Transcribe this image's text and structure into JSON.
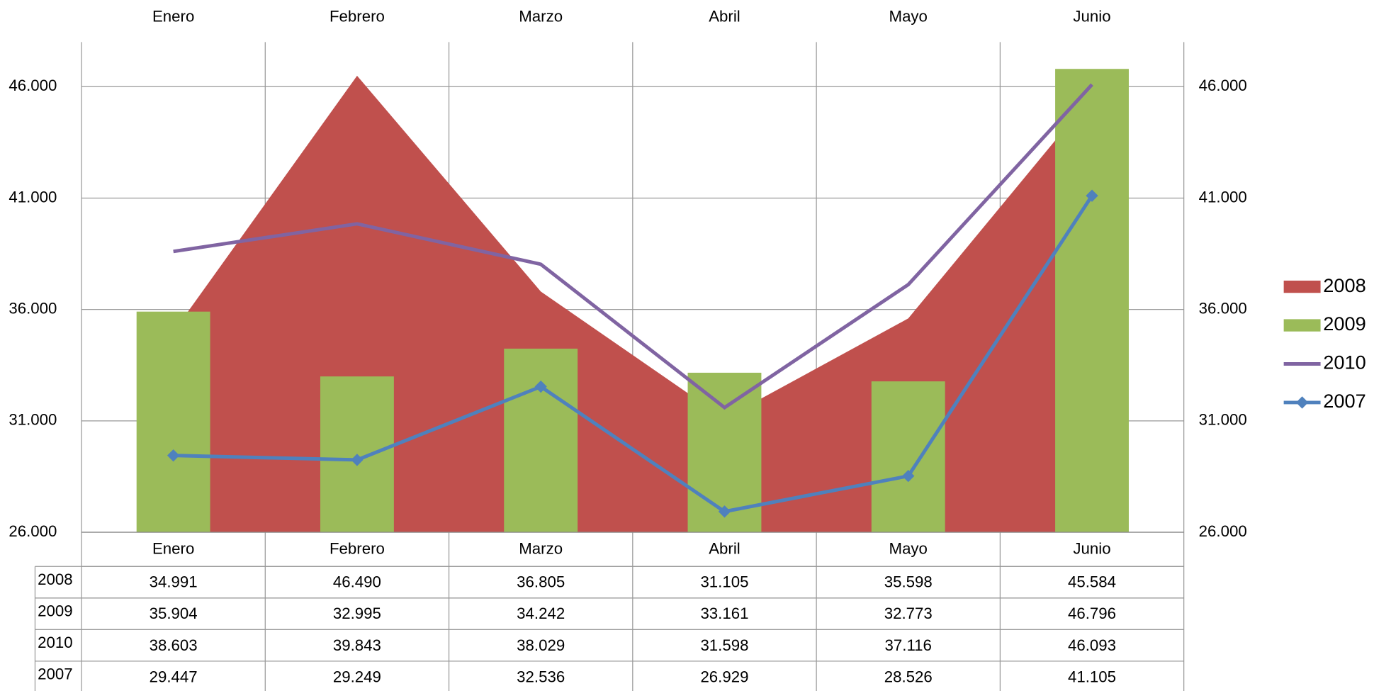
{
  "chart_data": {
    "type": "combo",
    "categories": [
      "Enero",
      "Febrero",
      "Marzo",
      "Abril",
      "Mayo",
      "Junio"
    ],
    "series": [
      {
        "name": "2008",
        "type": "area",
        "color": "#c0504d",
        "values": [
          34991,
          46490,
          36805,
          31105,
          35598,
          45584
        ],
        "value_labels": [
          "34.991",
          "46.490",
          "36.805",
          "31.105",
          "35.598",
          "45.584"
        ]
      },
      {
        "name": "2009",
        "type": "bar",
        "color": "#9bbb59",
        "values": [
          35904,
          32995,
          34242,
          33161,
          32773,
          46796
        ],
        "value_labels": [
          "35.904",
          "32.995",
          "34.242",
          "33.161",
          "32.773",
          "46.796"
        ]
      },
      {
        "name": "2010",
        "type": "line",
        "color": "#8064a2",
        "values": [
          38603,
          39843,
          38029,
          31598,
          37116,
          46093
        ],
        "value_labels": [
          "38.603",
          "39.843",
          "38.029",
          "31.598",
          "37.116",
          "46.093"
        ]
      },
      {
        "name": "2007",
        "type": "line",
        "marker": "diamond",
        "color": "#4f81bd",
        "values": [
          29447,
          29249,
          32536,
          26929,
          28526,
          41105
        ],
        "value_labels": [
          "29.447",
          "29.249",
          "32.536",
          "26.929",
          "28.526",
          "41.105"
        ]
      }
    ],
    "ylim": [
      26000,
      48000
    ],
    "yticks": [
      {
        "value": 26000,
        "label": "26.000"
      },
      {
        "value": 31000,
        "label": "31.000"
      },
      {
        "value": 36000,
        "label": "36.000"
      },
      {
        "value": 41000,
        "label": "41.000"
      },
      {
        "value": 46000,
        "label": "46.000"
      }
    ],
    "grid": true,
    "legend": "right"
  }
}
